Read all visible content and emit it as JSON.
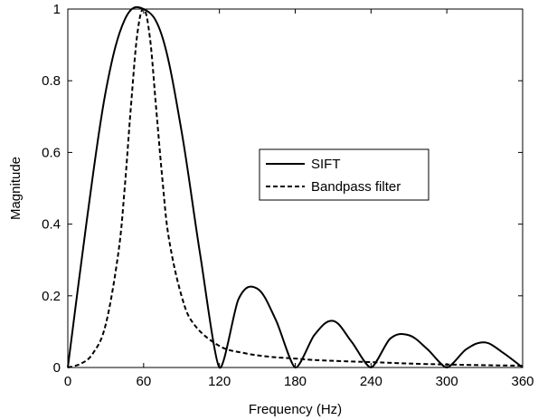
{
  "chart_data": {
    "type": "line",
    "title": "",
    "xlabel": "Frequency (Hz)",
    "ylabel": "Magnitude",
    "xlim": [
      0,
      360
    ],
    "ylim": [
      0,
      1
    ],
    "xticks": [
      0,
      60,
      120,
      180,
      240,
      300,
      360
    ],
    "yticks": [
      0,
      0.2,
      0.4,
      0.6,
      0.8,
      1
    ],
    "ytick_labels": [
      "0",
      "0.2",
      "0.4",
      "0.6",
      "0.8",
      "1"
    ],
    "grid": false,
    "legend_position": "center-right",
    "series": [
      {
        "name": "SIFT",
        "style": "solid",
        "color": "#000000",
        "x": [
          0,
          15,
          30,
          45,
          60,
          75,
          90,
          105,
          120,
          135,
          150,
          165,
          180,
          195,
          210,
          225,
          240,
          255,
          270,
          285,
          300,
          315,
          330,
          345,
          360
        ],
        "values": [
          0,
          0.41,
          0.77,
          0.97,
          1.0,
          0.92,
          0.66,
          0.31,
          0,
          0.19,
          0.22,
          0.13,
          0,
          0.09,
          0.13,
          0.07,
          0,
          0.08,
          0.09,
          0.05,
          0,
          0.05,
          0.07,
          0.04,
          0
        ]
      },
      {
        "name": "Bandpass filter",
        "style": "dashed",
        "color": "#000000",
        "x": [
          0,
          10,
          20,
          30,
          40,
          45,
          50,
          55,
          60,
          65,
          70,
          75,
          80,
          90,
          100,
          120,
          140,
          160,
          180,
          200,
          240,
          280,
          320,
          360
        ],
        "values": [
          0,
          0.01,
          0.04,
          0.12,
          0.32,
          0.5,
          0.73,
          0.93,
          1.0,
          0.92,
          0.72,
          0.52,
          0.36,
          0.2,
          0.12,
          0.06,
          0.04,
          0.03,
          0.025,
          0.02,
          0.015,
          0.01,
          0.007,
          0.005
        ]
      }
    ]
  }
}
